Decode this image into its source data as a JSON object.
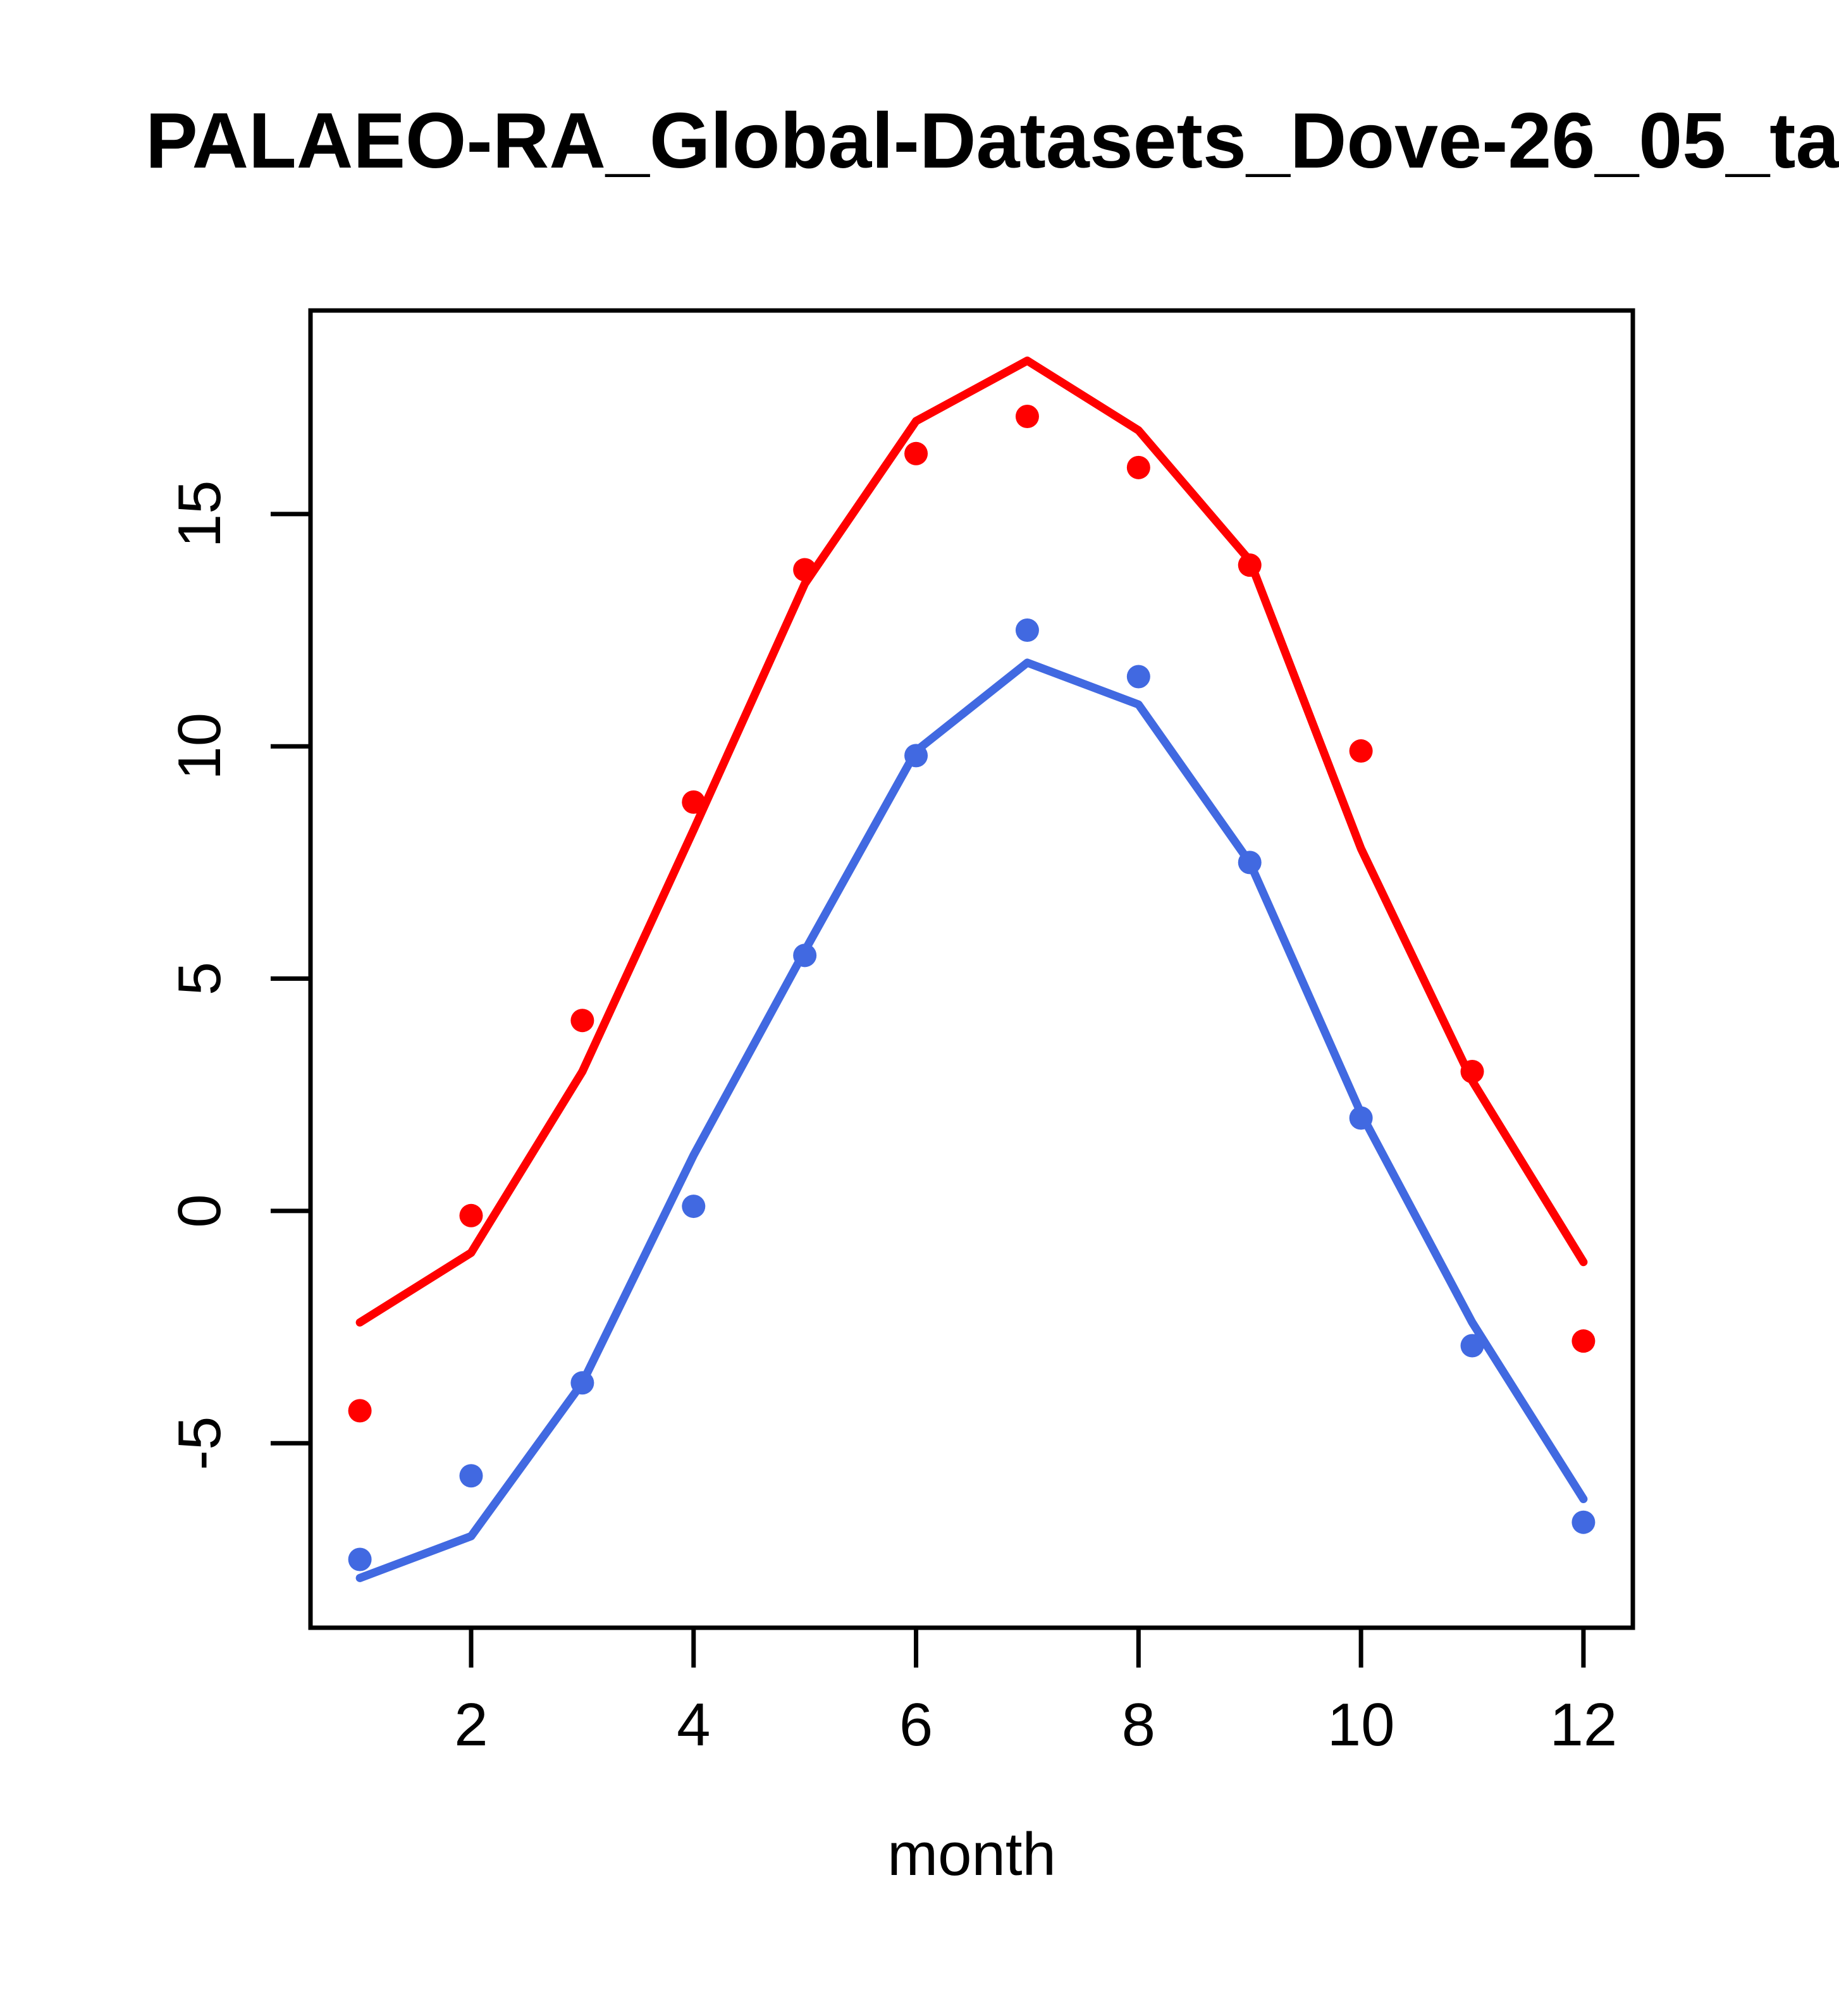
{
  "chart_data": {
    "type": "line",
    "title": "PALAEO-RA_Global-Datasets_Dove-26_05_ta",
    "xlabel": "month",
    "ylabel": "",
    "x": [
      1,
      2,
      3,
      4,
      5,
      6,
      7,
      8,
      9,
      10,
      11,
      12
    ],
    "xlim": [
      0.556,
      12.444
    ],
    "ylim": [
      -8.97,
      19.38
    ],
    "xticks": [
      2,
      4,
      6,
      8,
      10,
      12
    ],
    "yticks": [
      -5,
      0,
      5,
      10,
      15
    ],
    "grid": false,
    "legend": false,
    "series": [
      {
        "name": "red-line",
        "type": "line",
        "color": "#FF0000",
        "values": [
          -2.4,
          -0.9,
          3.0,
          8.2,
          13.5,
          17.0,
          18.3,
          16.8,
          14.0,
          7.8,
          2.8,
          -1.1
        ]
      },
      {
        "name": "red-points",
        "type": "scatter",
        "color": "#FF0000",
        "values": [
          -4.3,
          -0.1,
          4.1,
          8.8,
          13.8,
          16.3,
          17.1,
          16.0,
          13.9,
          9.9,
          3.0,
          -2.8
        ]
      },
      {
        "name": "blue-line",
        "type": "line",
        "color": "#4169E1",
        "values": [
          -7.9,
          -7.0,
          -3.7,
          1.2,
          5.6,
          9.9,
          11.8,
          10.9,
          7.5,
          2.1,
          -2.4,
          -6.2
        ]
      },
      {
        "name": "blue-points",
        "type": "scatter",
        "color": "#4169E1",
        "values": [
          -7.5,
          -5.7,
          -3.7,
          0.1,
          5.5,
          9.8,
          12.5,
          11.5,
          7.5,
          2.0,
          -2.9,
          -6.7
        ]
      }
    ]
  }
}
